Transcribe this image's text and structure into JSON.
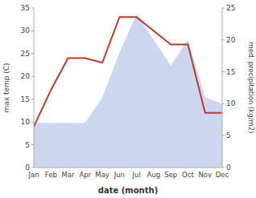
{
  "chart_data": {
    "type": "line",
    "xlabel": "date (month)",
    "ylabel": "max temp (C)",
    "y2label": "med. precipitation (kg/m2)",
    "categories": [
      "Jan",
      "Feb",
      "Mar",
      "Apr",
      "May",
      "Jun",
      "Jul",
      "Aug",
      "Sep",
      "Oct",
      "Nov",
      "Dec"
    ],
    "series": [
      {
        "type": "line",
        "color": "#c0392b",
        "values": [
          9,
          17,
          24,
          24,
          23,
          33,
          33,
          30,
          27,
          27,
          12,
          12
        ]
      },
      {
        "type": "area",
        "axis": "y2",
        "color": "#b8c4e8",
        "values": [
          7,
          7,
          7,
          7,
          11,
          18,
          24,
          20,
          16,
          20,
          11,
          10
        ]
      }
    ],
    "ylim": [
      0,
      35
    ],
    "yticks": [
      0,
      5,
      10,
      15,
      20,
      25,
      30,
      35
    ],
    "y2lim": [
      0,
      25
    ],
    "y2ticks": [
      0,
      5,
      10,
      15,
      20,
      25
    ],
    "grid": false
  }
}
